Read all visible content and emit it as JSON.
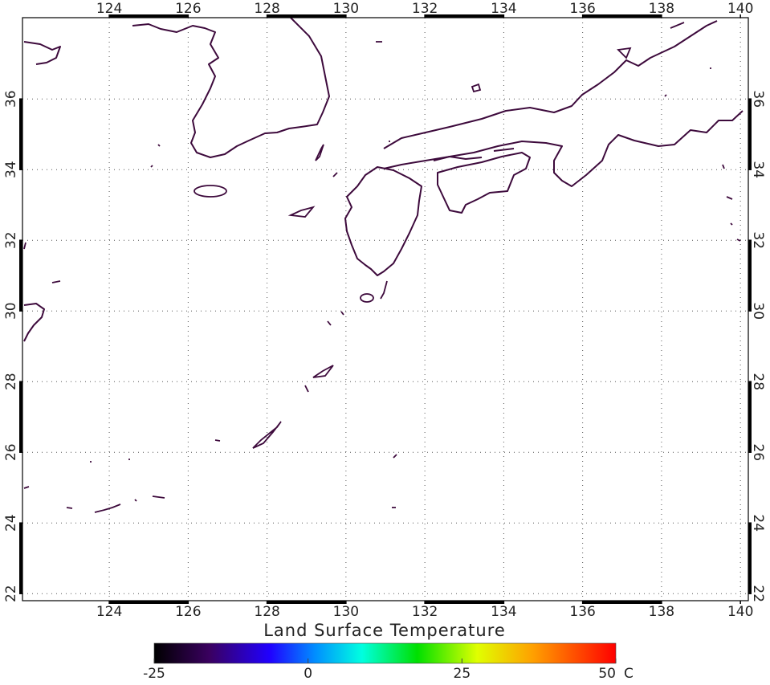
{
  "map": {
    "title": "Land Surface Temperature",
    "lonlim": [
      121.8,
      140.2
    ],
    "latlim": [
      21.8,
      38.3
    ],
    "lon_ticks": [
      124,
      126,
      128,
      130,
      132,
      134,
      136,
      138,
      140
    ],
    "lat_ticks": [
      22,
      24,
      26,
      28,
      30,
      32,
      34,
      36
    ],
    "colorbar": {
      "lim": [
        -25,
        50
      ],
      "ticks": [
        -25,
        0,
        25,
        50
      ],
      "unit": "C"
    }
  }
}
